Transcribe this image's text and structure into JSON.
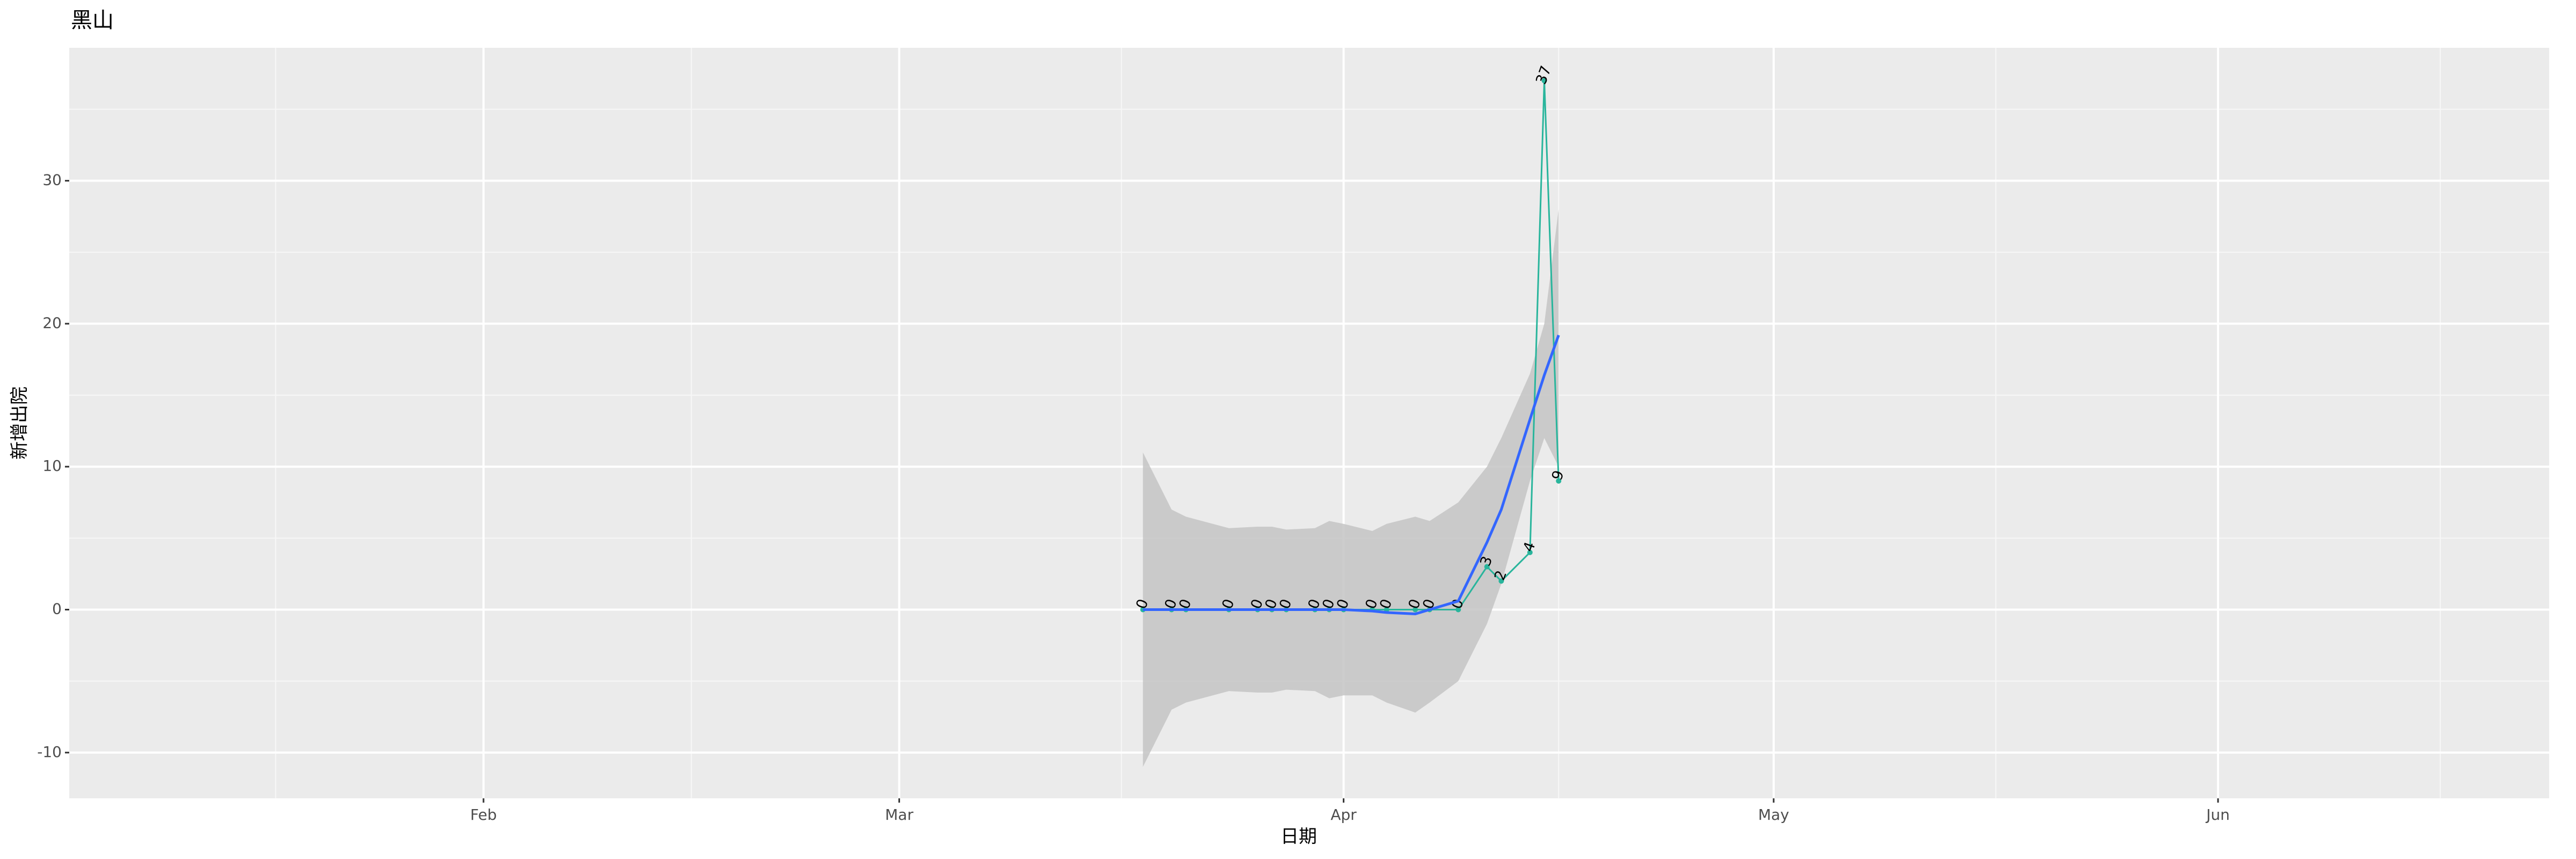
{
  "chart_data": {
    "type": "line",
    "title": "黑山",
    "xlabel": "日期",
    "ylabel": "新增出院",
    "x": [
      78,
      80,
      81,
      84,
      86,
      87,
      88,
      90,
      91,
      92,
      94,
      95,
      97,
      98,
      100,
      102,
      103,
      105,
      106,
      107
    ],
    "series": [
      {
        "color": "#29b59c",
        "values": [
          0,
          0,
          0,
          0,
          0,
          0,
          0,
          0,
          0,
          0,
          0,
          0,
          0,
          0,
          0,
          3,
          2,
          4,
          37,
          9
        ]
      }
    ],
    "smooth": {
      "color": "#3366ff",
      "values": [
        0,
        0,
        0,
        0,
        0,
        0,
        0,
        0,
        0,
        0,
        -0.1,
        -0.2,
        -0.3,
        0,
        0.6,
        4.7,
        7,
        13.3,
        16.4,
        19.2
      ]
    },
    "band": {
      "color": "#c4c4c4",
      "upper": [
        11,
        7,
        6.5,
        5.7,
        5.8,
        5.8,
        5.6,
        5.7,
        6.2,
        6,
        5.5,
        6,
        6.5,
        6.2,
        7.5,
        10,
        12,
        16.5,
        20,
        28
      ],
      "lower": [
        -11,
        -7,
        -6.5,
        -5.7,
        -5.8,
        -5.8,
        -5.6,
        -5.7,
        -6.2,
        -6,
        -6,
        -6.5,
        -7.2,
        -6.5,
        -5,
        -1,
        1.8,
        9,
        12,
        10
      ]
    },
    "xlim": [
      3.1,
      176.1
    ],
    "xticks": [
      {
        "value": 32,
        "label": "Feb"
      },
      {
        "value": 61,
        "label": "Mar"
      },
      {
        "value": 92,
        "label": "Apr"
      },
      {
        "value": 122,
        "label": "May"
      },
      {
        "value": 153,
        "label": "Jun"
      }
    ],
    "ylim": [
      -13.2,
      39.3
    ],
    "yticks": [
      -10,
      0,
      10,
      20,
      30
    ],
    "grid": true
  }
}
